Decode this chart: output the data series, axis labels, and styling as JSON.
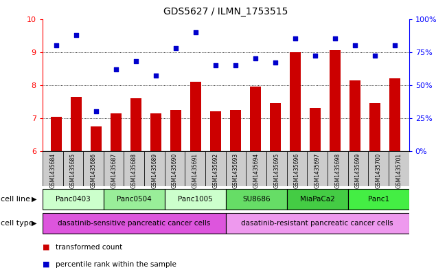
{
  "title": "GDS5627 / ILMN_1753515",
  "samples": [
    "GSM1435684",
    "GSM1435685",
    "GSM1435686",
    "GSM1435687",
    "GSM1435688",
    "GSM1435689",
    "GSM1435690",
    "GSM1435691",
    "GSM1435692",
    "GSM1435693",
    "GSM1435694",
    "GSM1435695",
    "GSM1435696",
    "GSM1435697",
    "GSM1435698",
    "GSM1435699",
    "GSM1435700",
    "GSM1435701"
  ],
  "bar_values": [
    7.05,
    7.65,
    6.75,
    7.15,
    7.6,
    7.15,
    7.25,
    8.1,
    7.2,
    7.25,
    7.95,
    7.45,
    9.0,
    7.3,
    9.05,
    8.15,
    7.45,
    8.2
  ],
  "dot_values": [
    80,
    88,
    30,
    62,
    68,
    57,
    78,
    90,
    65,
    65,
    70,
    67,
    85,
    72,
    85,
    80,
    72,
    80
  ],
  "bar_color": "#cc0000",
  "dot_color": "#0000cc",
  "ylim_left": [
    6,
    10
  ],
  "ylim_right": [
    0,
    100
  ],
  "yticks_left": [
    6,
    7,
    8,
    9,
    10
  ],
  "yticks_right": [
    0,
    25,
    50,
    75,
    100
  ],
  "ytick_labels_right": [
    "0%",
    "25%",
    "50%",
    "75%",
    "100%"
  ],
  "grid_lines": [
    7,
    8,
    9
  ],
  "cell_lines": [
    {
      "label": "Panc0403",
      "start": 0,
      "end": 3,
      "color": "#ccffcc"
    },
    {
      "label": "Panc0504",
      "start": 3,
      "end": 6,
      "color": "#99ee99"
    },
    {
      "label": "Panc1005",
      "start": 6,
      "end": 9,
      "color": "#ccffcc"
    },
    {
      "label": "SU8686",
      "start": 9,
      "end": 12,
      "color": "#66dd66"
    },
    {
      "label": "MiaPaCa2",
      "start": 12,
      "end": 15,
      "color": "#44cc44"
    },
    {
      "label": "Panc1",
      "start": 15,
      "end": 18,
      "color": "#44ee44"
    }
  ],
  "cell_type_groups": [
    {
      "label": "dasatinib-sensitive pancreatic cancer cells",
      "start": 0,
      "end": 9,
      "color": "#dd55dd"
    },
    {
      "label": "dasatinib-resistant pancreatic cancer cells",
      "start": 9,
      "end": 18,
      "color": "#ee99ee"
    }
  ],
  "legend_items": [
    {
      "label": "transformed count",
      "color": "#cc0000"
    },
    {
      "label": "percentile rank within the sample",
      "color": "#0000cc"
    }
  ],
  "cell_line_label": "cell line",
  "cell_type_label": "cell type",
  "sample_box_color": "#cccccc",
  "fig_bg": "#ffffff"
}
